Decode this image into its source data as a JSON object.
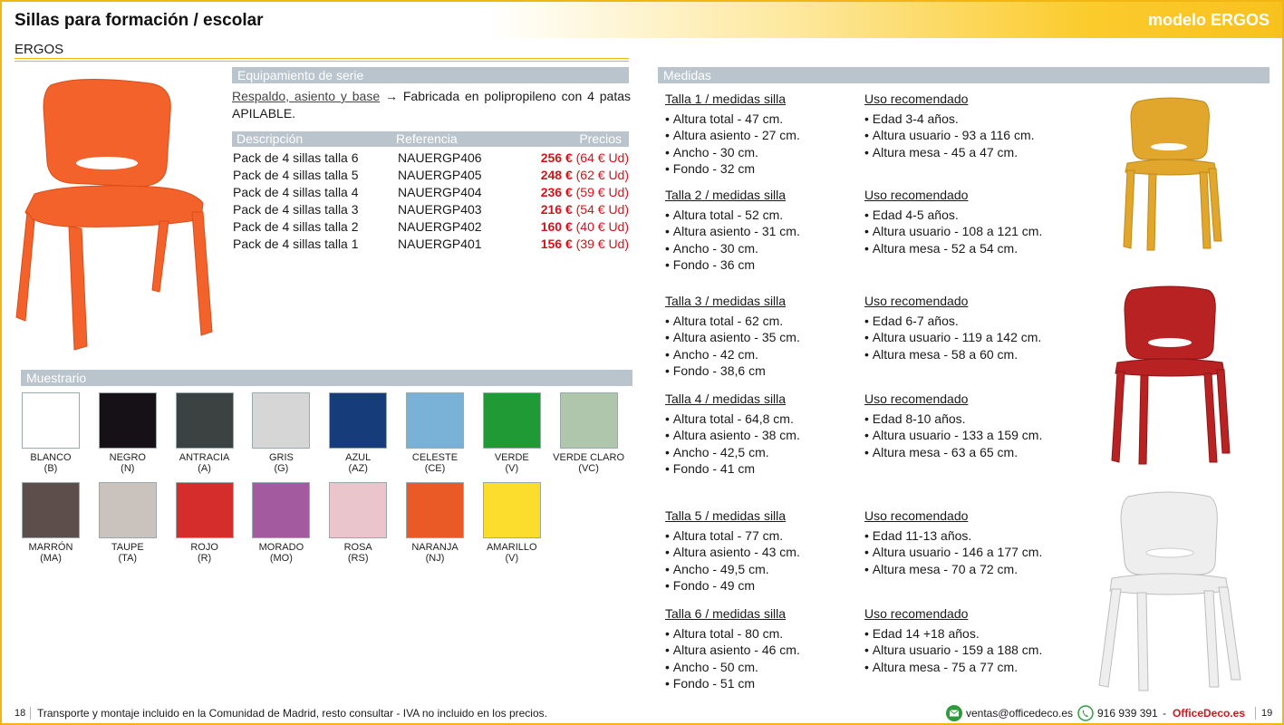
{
  "header": {
    "title": "Sillas para formación / escolar",
    "model": "modelo ERGOS",
    "subtitle": "ERGOS"
  },
  "equip": {
    "bar": "Equipamiento de serie",
    "link": "Respaldo, asiento y base",
    "arrow": "→",
    "text": " Fabricada en polipropileno con 4 patas APILABLE."
  },
  "table": {
    "headers": [
      "Descripción",
      "Referencia",
      "Precios"
    ],
    "rows": [
      {
        "desc": "Pack de 4 sillas talla 6",
        "ref": "NAUERGP406",
        "price": "256 €",
        "unit": "(64 € Ud)"
      },
      {
        "desc": "Pack de 4 sillas talla 5",
        "ref": "NAUERGP405",
        "price": "248 €",
        "unit": "(62 € Ud)"
      },
      {
        "desc": "Pack de 4 sillas talla 4",
        "ref": "NAUERGP404",
        "price": "236 €",
        "unit": "(59 € Ud)"
      },
      {
        "desc": "Pack de 4 sillas talla 3",
        "ref": "NAUERGP403",
        "price": "216 €",
        "unit": "(54 € Ud)"
      },
      {
        "desc": "Pack de 4 sillas talla 2",
        "ref": "NAUERGP402",
        "price": "160 €",
        "unit": "(40 € Ud)"
      },
      {
        "desc": "Pack de 4 sillas talla 1",
        "ref": "NAUERGP401",
        "price": "156 €",
        "unit": "(39 € Ud)"
      }
    ]
  },
  "samples": {
    "bar": "Muestrario",
    "items": [
      {
        "name": "BLANCO",
        "code": "(B)",
        "color": "#ffffff"
      },
      {
        "name": "NEGRO",
        "code": "(N)",
        "color": "#151116"
      },
      {
        "name": "ANTRACIA",
        "code": "(A)",
        "color": "#3b4241"
      },
      {
        "name": "GRIS",
        "code": "(G)",
        "color": "#d6d6d6"
      },
      {
        "name": "AZUL",
        "code": "(AZ)",
        "color": "#173c7a"
      },
      {
        "name": "CELESTE",
        "code": "(CE)",
        "color": "#7ab1d6"
      },
      {
        "name": "VERDE",
        "code": "(V)",
        "color": "#1f9a35"
      },
      {
        "name": "VERDE CLARO",
        "code": "(VC)",
        "color": "#b0c6ac"
      },
      {
        "name": "MARRÓN",
        "code": "(MA)",
        "color": "#5e4e4b"
      },
      {
        "name": "TAUPE",
        "code": "(TA)",
        "color": "#c9c2bd"
      },
      {
        "name": "ROJO",
        "code": "(R)",
        "color": "#d52c2c"
      },
      {
        "name": "MORADO",
        "code": "(MO)",
        "color": "#a45a9f"
      },
      {
        "name": "ROSA",
        "code": "(RS)",
        "color": "#ebc5cc"
      },
      {
        "name": "NARANJA",
        "code": "(NJ)",
        "color": "#ea5a26"
      },
      {
        "name": "AMARILLO",
        "code": "(V)",
        "color": "#fcdc2c"
      }
    ]
  },
  "medidas": {
    "bar": "Medidas",
    "sizes": [
      {
        "title": "Talla 1 / medidas silla",
        "items": [
          "Altura total - 47 cm.",
          "Altura asiento - 27 cm.",
          "Ancho - 30 cm.",
          "Fondo - 32 cm"
        ],
        "use_title": "Uso recomendado",
        "use": [
          "Edad 3-4 años.",
          "Altura usuario - 93 a 116 cm.",
          "Altura mesa - 45 a 47 cm."
        ]
      },
      {
        "title": "Talla 2 / medidas silla",
        "items": [
          "Altura total - 52 cm.",
          "Altura asiento - 31 cm.",
          "Ancho - 30 cm.",
          "Fondo - 36 cm"
        ],
        "use_title": "Uso recomendado",
        "use": [
          "Edad 4-5 años.",
          "Altura usuario - 108 a 121 cm.",
          "Altura mesa - 52 a 54 cm."
        ]
      },
      {
        "title": "Talla 3 / medidas silla",
        "items": [
          "Altura total - 62 cm.",
          "Altura asiento - 35 cm.",
          "Ancho - 42 cm.",
          "Fondo - 38,6 cm"
        ],
        "use_title": "Uso recomendado",
        "use": [
          "Edad 6-7 años.",
          "Altura usuario - 119 a 142 cm.",
          "Altura mesa - 58 a 60 cm."
        ]
      },
      {
        "title": "Talla 4 / medidas silla",
        "items": [
          "Altura total - 64,8 cm.",
          "Altura asiento - 38 cm.",
          "Ancho - 42,5 cm.",
          "Fondo - 41 cm"
        ],
        "use_title": "Uso recomendado",
        "use": [
          "Edad 8-10 años.",
          "Altura usuario - 133 a 159 cm.",
          "Altura mesa - 63 a 65 cm."
        ]
      },
      {
        "title": "Talla 5 / medidas silla",
        "items": [
          "Altura total - 77 cm.",
          "Altura asiento - 43 cm.",
          "Ancho - 49,5 cm.",
          "Fondo - 49 cm"
        ],
        "use_title": "Uso recomendado",
        "use": [
          "Edad 11-13 años.",
          "Altura usuario - 146 a 177 cm.",
          "Altura mesa - 70 a 72 cm."
        ]
      },
      {
        "title": "Talla 6 / medidas silla",
        "items": [
          "Altura total - 80 cm.",
          "Altura asiento - 46 cm.",
          "Ancho - 50 cm.",
          "Fondo - 51 cm"
        ],
        "use_title": "Uso recomendado",
        "use": [
          "Edad 14 +18 años.",
          "Altura usuario - 159 a 188 cm.",
          "Altura mesa - 75 a 77 cm."
        ]
      }
    ]
  },
  "chairs": {
    "main": "#f2622a",
    "yellow": "#e0a72c",
    "red": "#b82222",
    "white": "#eeeeee"
  },
  "footer": {
    "page_left": "18",
    "text": "Transporte y montaje incluido en la Comunidad de Madrid, resto consultar - IVA no incluido en los precios.",
    "email": "ventas@officedeco.es",
    "phone": "916 939 391",
    "dash": "-",
    "brand": "OfficeDeco.es",
    "page_right": "19"
  }
}
